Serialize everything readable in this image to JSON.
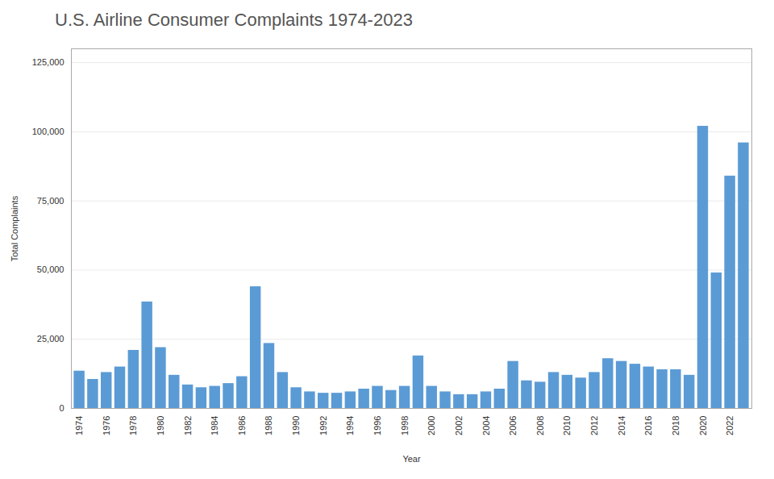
{
  "chart_data": {
    "type": "bar",
    "title": "U.S. Airline Consumer Complaints 1974-2023",
    "xlabel": "Year",
    "ylabel": "Total Complaints",
    "color": "#5B9BD5",
    "categories": [
      "1974",
      null,
      "1976",
      null,
      "1978",
      null,
      "1980",
      null,
      "1982",
      null,
      "1984",
      null,
      "1986",
      null,
      "1988",
      null,
      "1990",
      null,
      "1992",
      null,
      "1994",
      null,
      "1996",
      null,
      "1998",
      null,
      "2000",
      null,
      "2002",
      null,
      "2004",
      null,
      "2006",
      null,
      "2008",
      null,
      "2010",
      null,
      "2012",
      null,
      "2014",
      null,
      "2016",
      null,
      "2018",
      null,
      "2020",
      null,
      "2022",
      null
    ],
    "values": [
      13500,
      10500,
      13000,
      15000,
      21000,
      38500,
      22000,
      12000,
      8500,
      7500,
      8000,
      9000,
      11500,
      44000,
      23500,
      13000,
      7500,
      6000,
      5500,
      5500,
      6000,
      7000,
      8000,
      6500,
      8000,
      19000,
      8000,
      6000,
      5000,
      5000,
      6000,
      7000,
      17000,
      10000,
      9500,
      13000,
      12000,
      11000,
      13000,
      18000,
      17000,
      16000,
      15000,
      14000,
      14000,
      12000,
      102000,
      49000,
      84000,
      96000
    ],
    "ylim": [
      0,
      130000
    ],
    "yticks": [
      0,
      {
        "value": 25000,
        "label": "25,000"
      },
      {
        "value": 50000,
        "label": "50,000"
      },
      {
        "value": 75000,
        "label": "75,000"
      },
      {
        "value": 100000,
        "label": "100,000"
      },
      {
        "value": 125000,
        "label": "125,000"
      }
    ],
    "grid": true
  }
}
